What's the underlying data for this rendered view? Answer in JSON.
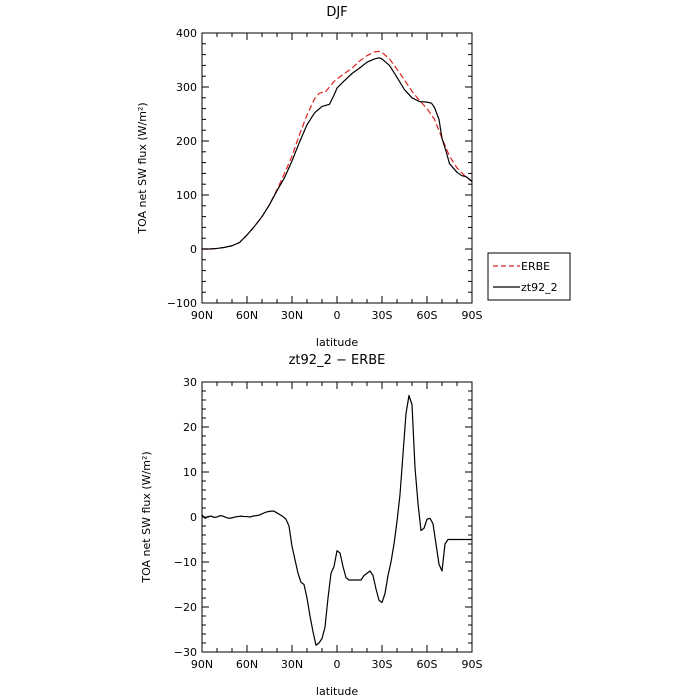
{
  "chart_data": [
    {
      "type": "line",
      "title": "DJF",
      "xlabel": "latitude",
      "ylabel": "TOA net SW flux (W/m²)",
      "xlim": [
        90,
        -90
      ],
      "ylim": [
        -100,
        400
      ],
      "xtick_values": [
        90,
        60,
        30,
        0,
        -30,
        -60,
        -90
      ],
      "xtick_labels": [
        "90N",
        "60N",
        "30N",
        "0",
        "30S",
        "60S",
        "90S"
      ],
      "ytick_values": [
        -100,
        0,
        100,
        200,
        300,
        400
      ],
      "ytick_labels": [
        "−100",
        "0",
        "100",
        "200",
        "300",
        "400"
      ],
      "legend": {
        "position": "right",
        "entries": [
          {
            "label": "ERBE",
            "color": "#dd2222",
            "style": "dashed"
          },
          {
            "label": "zt92_2",
            "color": "#000000",
            "style": "solid"
          }
        ]
      },
      "series": [
        {
          "name": "ERBE",
          "color": "#dd2222",
          "style": "dashed",
          "x": [
            90,
            85,
            80,
            75,
            70,
            65,
            60,
            55,
            50,
            45,
            40,
            35,
            30,
            25,
            20,
            15,
            12,
            10,
            8,
            5,
            2,
            0,
            -5,
            -10,
            -15,
            -20,
            -25,
            -28,
            -30,
            -35,
            -40,
            -45,
            -50,
            -55,
            -60,
            -65,
            -70,
            -75,
            -80,
            -85,
            -88,
            -90
          ],
          "y": [
            0,
            0,
            1,
            3,
            6,
            12,
            26,
            42,
            60,
            82,
            110,
            140,
            172,
            212,
            248,
            278,
            288,
            290,
            290,
            300,
            310,
            315,
            325,
            335,
            348,
            358,
            365,
            366,
            364,
            352,
            333,
            313,
            292,
            275,
            260,
            240,
            205,
            172,
            150,
            136,
            130,
            125
          ]
        },
        {
          "name": "zt92_2",
          "color": "#000000",
          "style": "solid",
          "x": [
            90,
            85,
            80,
            75,
            70,
            65,
            60,
            55,
            50,
            45,
            40,
            35,
            30,
            25,
            20,
            15,
            10,
            5,
            2,
            0,
            -5,
            -10,
            -15,
            -20,
            -25,
            -28,
            -30,
            -35,
            -40,
            -45,
            -50,
            -55,
            -60,
            -63,
            -65,
            -68,
            -70,
            -73,
            -75,
            -80,
            -83,
            -86,
            -90
          ],
          "y": [
            0,
            0,
            1,
            3,
            6,
            12,
            26,
            42,
            60,
            82,
            108,
            132,
            163,
            198,
            230,
            252,
            264,
            268,
            285,
            298,
            312,
            325,
            335,
            346,
            352,
            354,
            352,
            340,
            318,
            295,
            280,
            273,
            272,
            270,
            262,
            240,
            205,
            178,
            158,
            142,
            136,
            134,
            125
          ]
        }
      ]
    },
    {
      "type": "line",
      "title": "zt92_2 − ERBE",
      "xlabel": "latitude",
      "ylabel": "TOA net SW flux (W/m²)",
      "xlim": [
        90,
        -90
      ],
      "ylim": [
        -30,
        30
      ],
      "xtick_values": [
        90,
        60,
        30,
        0,
        -30,
        -60,
        -90
      ],
      "xtick_labels": [
        "90N",
        "60N",
        "30N",
        "0",
        "30S",
        "60S",
        "90S"
      ],
      "ytick_values": [
        -30,
        -20,
        -10,
        0,
        10,
        20,
        30
      ],
      "ytick_labels": [
        "−30",
        "−20",
        "−10",
        "0",
        "10",
        "20",
        "30"
      ],
      "series": [
        {
          "color": "#000000",
          "style": "solid",
          "x": [
            90,
            88,
            86,
            84,
            82,
            80,
            78,
            76,
            74,
            72,
            70,
            68,
            66,
            64,
            62,
            60,
            58,
            56,
            54,
            52,
            50,
            48,
            46,
            44,
            42,
            40,
            38,
            36,
            34,
            32,
            30,
            28,
            26,
            24,
            22,
            20,
            18,
            16,
            14,
            12,
            10,
            8,
            6,
            4,
            2,
            0,
            -2,
            -4,
            -6,
            -8,
            -10,
            -12,
            -14,
            -16,
            -18,
            -20,
            -22,
            -24,
            -26,
            -28,
            -30,
            -32,
            -34,
            -36,
            -38,
            -40,
            -42,
            -44,
            -46,
            -48,
            -50,
            -52,
            -54,
            -56,
            -58,
            -60,
            -62,
            -64,
            -66,
            -68,
            -70,
            -72,
            -74,
            -76,
            -78,
            -80,
            -82,
            -84,
            -86,
            -88,
            -90
          ],
          "y": [
            0.5,
            -0.3,
            0.1,
            0.2,
            -0.1,
            0.0,
            0.3,
            0.2,
            -0.1,
            -0.3,
            -0.2,
            0.0,
            0.1,
            0.2,
            0.1,
            0.1,
            0.0,
            0.2,
            0.3,
            0.4,
            0.7,
            1.0,
            1.2,
            1.3,
            1.3,
            0.9,
            0.5,
            0.1,
            -0.5,
            -2.0,
            -6.5,
            -9.5,
            -12.5,
            -14.5,
            -15.0,
            -18.0,
            -22.0,
            -25.5,
            -28.5,
            -28.0,
            -27.0,
            -24.5,
            -18.0,
            -12.5,
            -11.0,
            -7.5,
            -8.0,
            -11.0,
            -13.5,
            -14.0,
            -14.0,
            -14.0,
            -14.0,
            -14.0,
            -13.0,
            -12.5,
            -12.0,
            -13.0,
            -16.0,
            -18.5,
            -19.0,
            -17.0,
            -13.0,
            -10.0,
            -6.0,
            -1.0,
            5.0,
            14.0,
            23.0,
            27.0,
            25.0,
            11.0,
            3.0,
            -3.0,
            -2.5,
            -0.5,
            -0.3,
            -1.5,
            -6.0,
            -10.5,
            -12.0,
            -6.0,
            -5.0,
            -5.0,
            -5.0,
            -5.0,
            -5.0,
            -5.0,
            -5.0,
            -5.0,
            -5.0
          ]
        }
      ]
    }
  ]
}
